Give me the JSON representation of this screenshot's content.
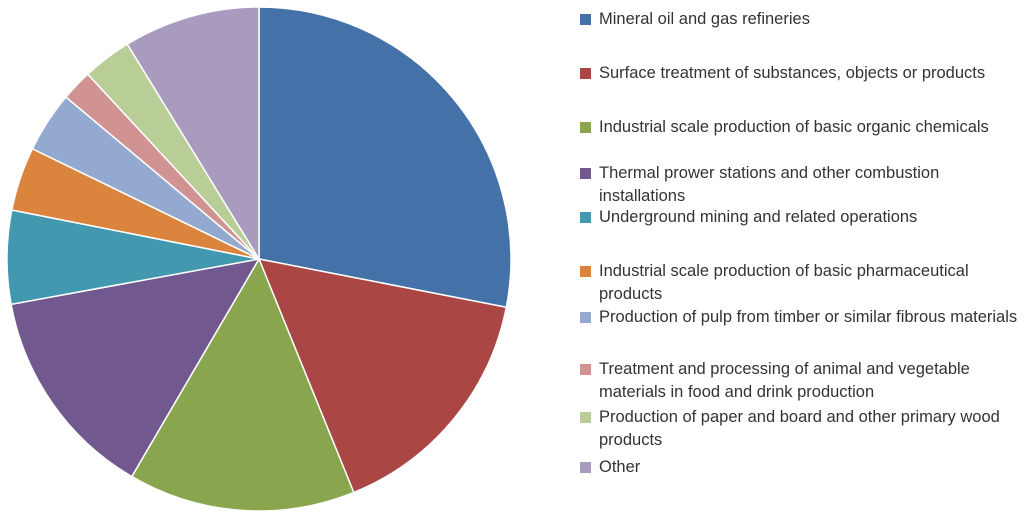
{
  "chart_data": {
    "type": "pie",
    "title": "",
    "legend_position": "right",
    "categories": [
      "Mineral oil and gas refineries",
      "Surface treatment of substances, objects or products",
      "Industrial scale production of basic organic chemicals",
      "Thermal prower stations and other combustion installations",
      "Underground mining and related operations",
      "Industrial scale production of basic pharmaceutical products",
      "Production of pulp from timber or similar fibrous materials",
      "Treatment and processing of animal and vegetable materials in food and drink production",
      "Production of paper and board and other primary wood products",
      "Other"
    ],
    "values": [
      29.5,
      16.6,
      15.3,
      14.4,
      6.3,
      4.3,
      4.1,
      2.1,
      3.3,
      9.2
    ],
    "unit": "%",
    "colors": [
      "#4472a8",
      "#aa4644",
      "#89a54e",
      "#71588f",
      "#4198af",
      "#db843d",
      "#93a9cf",
      "#d19392",
      "#b9cd96",
      "#a99bbd"
    ]
  }
}
